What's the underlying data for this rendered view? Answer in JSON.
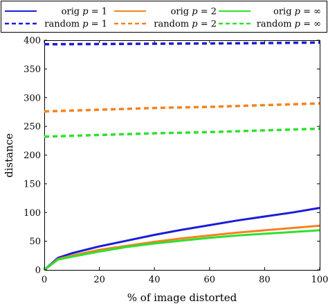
{
  "chart_data": {
    "type": "line",
    "title": "",
    "xlabel": "% of image distorted",
    "ylabel": "distance",
    "xlim": [
      0,
      100
    ],
    "ylim": [
      0,
      400
    ],
    "xticks": [
      0,
      20,
      40,
      60,
      80,
      100
    ],
    "yticks": [
      0,
      50,
      100,
      150,
      200,
      250,
      300,
      350,
      400
    ],
    "grid": false,
    "legend_position": "top",
    "legend_columns": 3,
    "series": [
      {
        "name": "orig p = 1",
        "label_parts": [
          "orig ",
          "p",
          " = 1"
        ],
        "color": "#1c1cd8",
        "style": "solid",
        "x": [
          0,
          5,
          10,
          20,
          30,
          40,
          50,
          60,
          70,
          80,
          90,
          100
        ],
        "y": [
          0,
          21,
          29,
          41,
          51,
          61,
          70,
          78,
          86,
          93,
          100,
          108
        ]
      },
      {
        "name": "orig p = 2",
        "label_parts": [
          "orig ",
          "p",
          " = 2"
        ],
        "color": "#f5821f",
        "style": "solid",
        "x": [
          0,
          5,
          10,
          20,
          30,
          40,
          50,
          60,
          70,
          80,
          90,
          100
        ],
        "y": [
          0,
          19,
          25,
          35,
          42,
          49,
          55,
          60,
          65,
          69,
          73,
          77
        ]
      },
      {
        "name": "orig p = ∞",
        "label_parts": [
          "orig ",
          "p",
          " = ∞"
        ],
        "color": "#2ee02e",
        "style": "solid",
        "x": [
          0,
          5,
          10,
          20,
          30,
          40,
          50,
          60,
          70,
          80,
          90,
          100
        ],
        "y": [
          0,
          18,
          23,
          32,
          40,
          46,
          51,
          56,
          60,
          63,
          66,
          69
        ]
      },
      {
        "name": "random p = 1",
        "label_parts": [
          "random ",
          "p",
          " = 1"
        ],
        "color": "#1c1cd8",
        "style": "dashed",
        "x": [
          0,
          20,
          40,
          60,
          80,
          100
        ],
        "y": [
          393,
          393.5,
          394,
          394.5,
          395,
          396
        ]
      },
      {
        "name": "random p = 2",
        "label_parts": [
          "random ",
          "p",
          " = 2"
        ],
        "color": "#f5821f",
        "style": "dashed",
        "x": [
          0,
          20,
          40,
          60,
          80,
          100
        ],
        "y": [
          276,
          279,
          282,
          284,
          287,
          290
        ]
      },
      {
        "name": "random p = ∞",
        "label_parts": [
          "random ",
          "p",
          " = ∞"
        ],
        "color": "#2ee02e",
        "style": "dashed",
        "x": [
          0,
          20,
          40,
          60,
          80,
          100
        ],
        "y": [
          232,
          235,
          238,
          240,
          243,
          246
        ]
      }
    ]
  }
}
